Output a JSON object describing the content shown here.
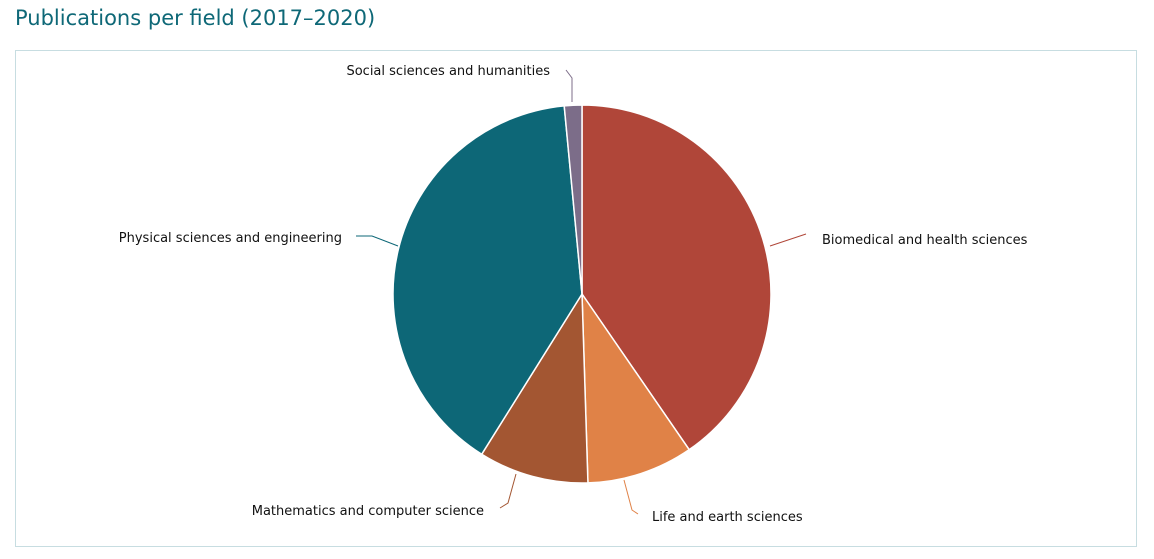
{
  "header": {
    "title": "Publications per field (2017–2020)"
  },
  "chart_data": {
    "type": "pie",
    "title": "Publications per field (2017–2020)",
    "start_angle_deg": 0,
    "direction": "clockwise",
    "slices": [
      {
        "label": "Biomedical and health sciences",
        "value": 40.4,
        "color": "#b04639"
      },
      {
        "label": "Life and earth sciences",
        "value": 9.1,
        "color": "#e08247"
      },
      {
        "label": "Mathematics and computer science",
        "value": 9.4,
        "color": "#a35632"
      },
      {
        "label": "Physical sciences and engineering",
        "value": 39.6,
        "color": "#0d6777"
      },
      {
        "label": "Social sciences and humanities",
        "value": 1.5,
        "color": "#7c6d89"
      }
    ]
  }
}
